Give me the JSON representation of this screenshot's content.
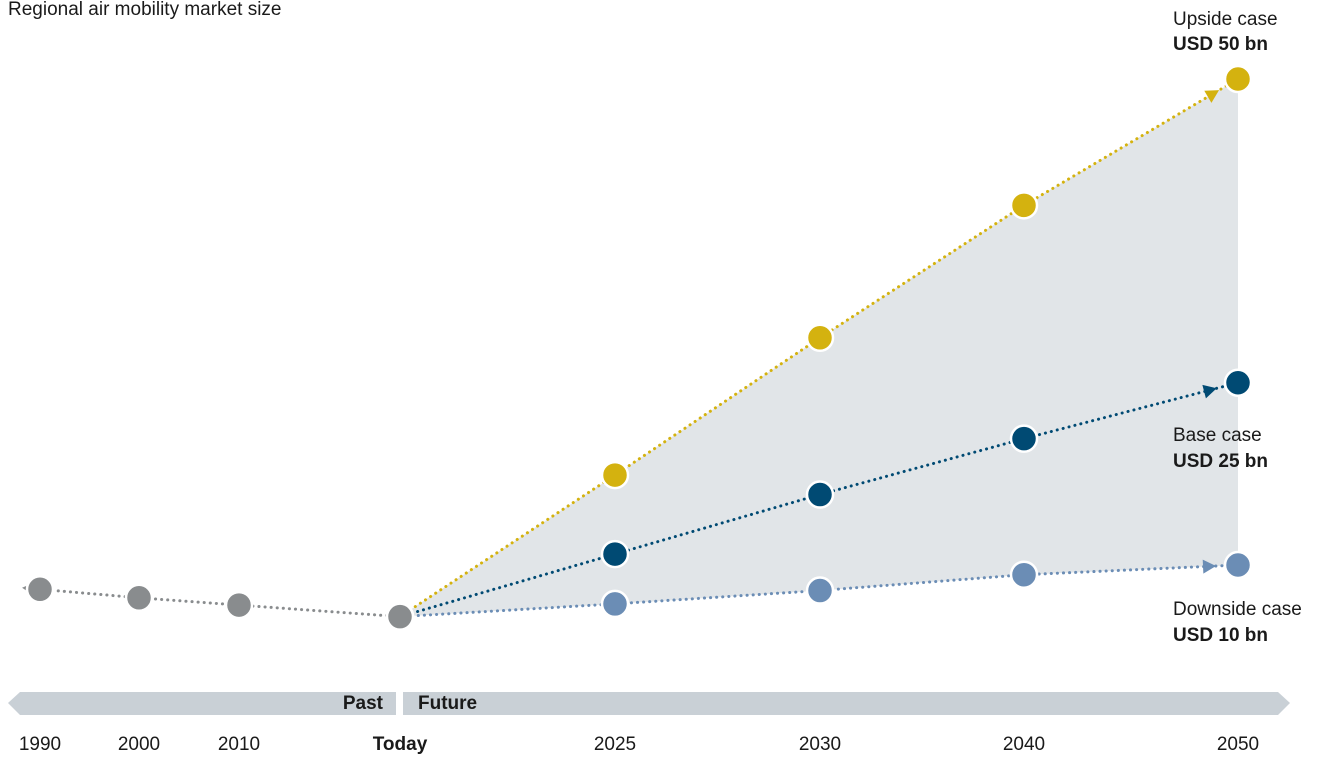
{
  "chart_data": {
    "type": "line",
    "title": "Regional air mobility market size",
    "categories": [
      "1990",
      "2000",
      "2010",
      "Today",
      "2025",
      "2030",
      "2040",
      "2050"
    ],
    "period_labels": [
      "Past",
      "Future"
    ],
    "range_color": "#e1e5e8",
    "series": [
      {
        "color": "#898c8e",
        "values": [
          8,
          7.3,
          6.7,
          5.75,
          null,
          null,
          null,
          null
        ]
      },
      {
        "name": "Upside case",
        "color": "#d4b20f",
        "values": [
          null,
          null,
          null,
          5.75,
          17.4,
          28.7,
          39.6,
          50
        ],
        "value_labels": [
          null,
          null,
          null,
          null,
          null,
          null,
          null,
          "USD 50 bn"
        ]
      },
      {
        "name": "Base case",
        "color": "#004a73",
        "values": [
          null,
          null,
          null,
          5.75,
          10.9,
          15.8,
          20.4,
          25
        ],
        "value_labels": [
          null,
          null,
          null,
          null,
          null,
          null,
          null,
          "USD 25 bn"
        ]
      },
      {
        "name": "Downside case",
        "color": "#6b8db5",
        "values": [
          null,
          null,
          null,
          5.75,
          6.8,
          7.9,
          9.2,
          10
        ],
        "value_labels": [
          null,
          null,
          null,
          null,
          null,
          null,
          null,
          "USD 10 bn"
        ]
      }
    ]
  }
}
